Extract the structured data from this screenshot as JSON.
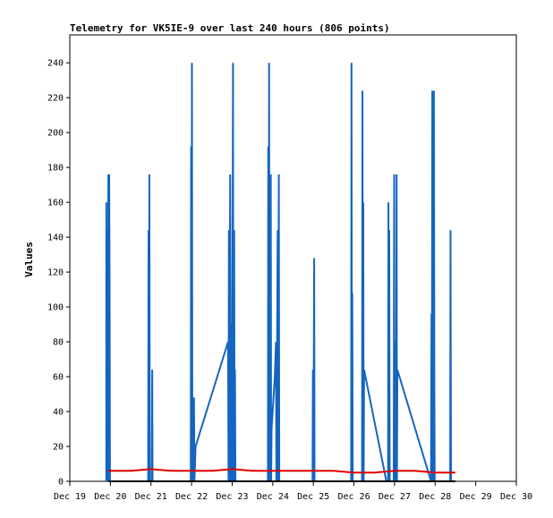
{
  "chart_data": {
    "type": "line",
    "title": "Telemetry for VK5IE-9 over last 240 hours (806 points)",
    "xlabel": "",
    "ylabel": "Values",
    "ylim": [
      0,
      256
    ],
    "yticks": [
      0,
      20,
      40,
      60,
      80,
      100,
      120,
      140,
      160,
      180,
      200,
      220,
      240
    ],
    "xlim": [
      0,
      11
    ],
    "xticks": [
      "Dec 19",
      "Dec 20",
      "Dec 21",
      "Dec 22",
      "Dec 23",
      "Dec 24",
      "Dec 25",
      "Dec 26",
      "Dec 27",
      "Dec 28",
      "Dec 29",
      "Dec 30"
    ],
    "grid": false,
    "colors": {
      "series_blue": "#1565c0",
      "series_red": "#e00000",
      "series_black": "#000000"
    },
    "series": [
      {
        "color": "#1565c0",
        "points": [
          [
            0.9,
            0
          ],
          [
            0.9,
            160
          ],
          [
            0.91,
            0
          ],
          [
            0.92,
            144
          ],
          [
            0.93,
            0
          ],
          [
            0.95,
            176
          ],
          [
            0.96,
            0
          ],
          [
            0.97,
            176
          ],
          [
            0.98,
            112
          ],
          [
            0.99,
            0
          ],
          [
            1.0,
            0
          ],
          [
            1.93,
            0
          ],
          [
            1.94,
            144
          ],
          [
            1.95,
            0
          ],
          [
            1.96,
            176
          ],
          [
            1.97,
            0
          ],
          [
            2.02,
            0
          ],
          [
            2.03,
            64
          ],
          [
            2.04,
            0
          ],
          [
            2.98,
            0
          ],
          [
            2.99,
            192
          ],
          [
            3.0,
            0
          ],
          [
            3.01,
            240
          ],
          [
            3.02,
            0
          ],
          [
            3.05,
            0
          ],
          [
            3.06,
            48
          ],
          [
            3.07,
            0
          ],
          [
            3.1,
            20
          ],
          [
            3.9,
            80
          ],
          [
            3.91,
            0
          ],
          [
            3.92,
            144
          ],
          [
            3.93,
            0
          ],
          [
            3.95,
            176
          ],
          [
            3.96,
            116
          ],
          [
            3.97,
            0
          ],
          [
            3.99,
            90
          ],
          [
            4.0,
            0
          ],
          [
            4.02,
            240
          ],
          [
            4.03,
            0
          ],
          [
            4.04,
            64
          ],
          [
            4.05,
            144
          ],
          [
            4.06,
            0
          ],
          [
            4.07,
            64
          ],
          [
            4.08,
            0
          ],
          [
            4.88,
            0
          ],
          [
            4.89,
            192
          ],
          [
            4.9,
            0
          ],
          [
            4.91,
            240
          ],
          [
            4.92,
            0
          ],
          [
            4.93,
            144
          ],
          [
            4.94,
            0
          ],
          [
            4.95,
            176
          ],
          [
            4.96,
            0
          ],
          [
            4.97,
            30
          ],
          [
            5.05,
            60
          ],
          [
            5.08,
            80
          ],
          [
            5.09,
            0
          ],
          [
            5.12,
            144
          ],
          [
            5.13,
            0
          ],
          [
            5.15,
            176
          ],
          [
            5.16,
            0
          ],
          [
            5.98,
            0
          ],
          [
            5.99,
            64
          ],
          [
            6.0,
            0
          ],
          [
            6.02,
            128
          ],
          [
            6.03,
            0
          ],
          [
            6.93,
            0
          ],
          [
            6.94,
            240
          ],
          [
            6.95,
            0
          ],
          [
            6.96,
            108
          ],
          [
            6.97,
            0
          ],
          [
            7.2,
            0
          ],
          [
            7.21,
            224
          ],
          [
            7.22,
            0
          ],
          [
            7.23,
            160
          ],
          [
            7.24,
            0
          ],
          [
            7.25,
            64
          ],
          [
            7.8,
            0
          ],
          [
            7.84,
            0
          ],
          [
            7.85,
            160
          ],
          [
            7.86,
            0
          ],
          [
            7.87,
            144
          ],
          [
            7.88,
            0
          ],
          [
            7.98,
            0
          ],
          [
            7.99,
            176
          ],
          [
            8.0,
            0
          ],
          [
            8.01,
            64
          ],
          [
            8.02,
            0
          ],
          [
            8.03,
            80
          ],
          [
            8.04,
            0
          ],
          [
            8.05,
            176
          ],
          [
            8.06,
            0
          ],
          [
            8.07,
            64
          ],
          [
            8.9,
            0
          ],
          [
            8.91,
            96
          ],
          [
            8.92,
            0
          ],
          [
            8.93,
            224
          ],
          [
            8.94,
            0
          ],
          [
            8.95,
            224
          ],
          [
            8.96,
            0
          ],
          [
            8.97,
            224
          ],
          [
            8.98,
            56
          ],
          [
            8.99,
            0
          ],
          [
            9.37,
            0
          ],
          [
            9.38,
            144
          ],
          [
            9.39,
            0
          ]
        ]
      },
      {
        "color": "#e00000",
        "points": [
          [
            0.95,
            6
          ],
          [
            1.5,
            6
          ],
          [
            2.0,
            7
          ],
          [
            2.5,
            6
          ],
          [
            3.0,
            6
          ],
          [
            3.5,
            6
          ],
          [
            4.0,
            7
          ],
          [
            4.5,
            6
          ],
          [
            5.0,
            6
          ],
          [
            5.5,
            6
          ],
          [
            6.0,
            6
          ],
          [
            6.5,
            6
          ],
          [
            7.0,
            5
          ],
          [
            7.5,
            5
          ],
          [
            8.0,
            6
          ],
          [
            8.5,
            6
          ],
          [
            9.0,
            5
          ],
          [
            9.5,
            5
          ]
        ]
      },
      {
        "color": "#000000",
        "points": [
          [
            0.95,
            0
          ],
          [
            9.5,
            0
          ]
        ]
      }
    ]
  }
}
